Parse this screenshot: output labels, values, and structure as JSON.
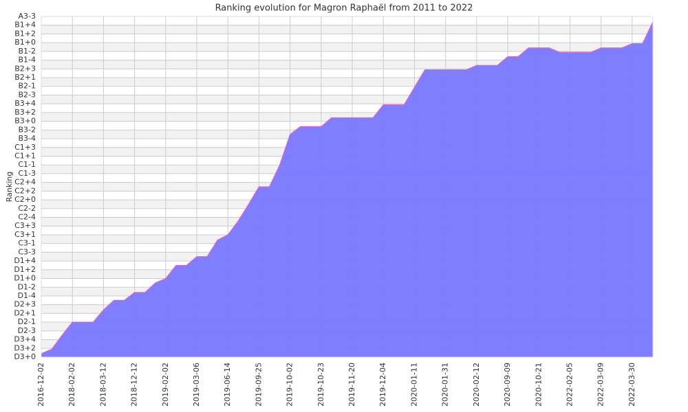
{
  "chart_data": {
    "type": "area",
    "title": "Ranking evolution for Magron Raphaël from 2011 to 2022",
    "y_label": "Ranking",
    "categories": [
      "2016-12-02",
      null,
      null,
      "2018-02-02",
      null,
      null,
      "2018-03-12",
      null,
      null,
      "2018-12-12",
      null,
      null,
      "2019-02-02",
      null,
      null,
      "2019-03-06",
      null,
      null,
      "2019-06-14",
      null,
      null,
      "2019-09-25",
      null,
      null,
      "2019-10-02",
      null,
      null,
      "2019-10-23",
      null,
      null,
      "2019-11-20",
      null,
      null,
      "2019-12-04",
      null,
      null,
      "2020-01-11",
      null,
      null,
      "2020-01-31",
      null,
      null,
      "2020-02-12",
      null,
      null,
      "2020-09-09",
      null,
      null,
      "2020-10-21",
      null,
      null,
      "2022-02-05",
      null,
      null,
      "2022-03-09",
      null,
      null,
      "2022-03-30",
      null,
      null
    ],
    "values": [
      0.4,
      0.9,
      2.5,
      4,
      4,
      4,
      5.4,
      6.5,
      6.5,
      7.4,
      7.4,
      8.5,
      9,
      10.5,
      10.5,
      11.5,
      11.5,
      13.4,
      14,
      15.6,
      17.5,
      19.5,
      19.5,
      22,
      25.5,
      26.4,
      26.4,
      26.4,
      27.4,
      27.4,
      27.4,
      27.4,
      27.4,
      28.9,
      28.9,
      28.9,
      30.9,
      32.9,
      32.9,
      32.9,
      32.9,
      32.9,
      33.4,
      33.4,
      33.4,
      34.4,
      34.4,
      35.4,
      35.4,
      35.4,
      34.9,
      34.9,
      34.9,
      34.9,
      35.4,
      35.4,
      35.4,
      35.9,
      35.9,
      38.4
    ],
    "color": "#7777ff",
    "line_color": "#dd66dd",
    "ylim": [
      0,
      39
    ],
    "yticks": [
      {
        "value": 0,
        "label": "D3+0"
      },
      {
        "value": 1,
        "label": "D3+2"
      },
      {
        "value": 2,
        "label": "D3+4"
      },
      {
        "value": 3,
        "label": "D2-3"
      },
      {
        "value": 4,
        "label": "D2-1"
      },
      {
        "value": 5,
        "label": "D2+1"
      },
      {
        "value": 6,
        "label": "D2+3"
      },
      {
        "value": 7,
        "label": "D1-4"
      },
      {
        "value": 8,
        "label": "D1-2"
      },
      {
        "value": 9,
        "label": "D1+0"
      },
      {
        "value": 10,
        "label": "D1+2"
      },
      {
        "value": 11,
        "label": "D1+4"
      },
      {
        "value": 12,
        "label": "C3-3"
      },
      {
        "value": 13,
        "label": "C3-1"
      },
      {
        "value": 14,
        "label": "C3+1"
      },
      {
        "value": 15,
        "label": "C3+3"
      },
      {
        "value": 16,
        "label": "C2-4"
      },
      {
        "value": 17,
        "label": "C2-2"
      },
      {
        "value": 18,
        "label": "C2+0"
      },
      {
        "value": 19,
        "label": "C2+2"
      },
      {
        "value": 20,
        "label": "C2+4"
      },
      {
        "value": 21,
        "label": "C1-3"
      },
      {
        "value": 22,
        "label": "C1-1"
      },
      {
        "value": 23,
        "label": "C1+1"
      },
      {
        "value": 24,
        "label": "C1+3"
      },
      {
        "value": 25,
        "label": "B3-4"
      },
      {
        "value": 26,
        "label": "B3-2"
      },
      {
        "value": 27,
        "label": "B3+0"
      },
      {
        "value": 28,
        "label": "B3+2"
      },
      {
        "value": 29,
        "label": "B3+4"
      },
      {
        "value": 30,
        "label": "B2-3"
      },
      {
        "value": 31,
        "label": "B2-1"
      },
      {
        "value": 32,
        "label": "B2+1"
      },
      {
        "value": 33,
        "label": "B2+3"
      },
      {
        "value": 34,
        "label": "B1-4"
      },
      {
        "value": 35,
        "label": "B1-2"
      },
      {
        "value": 36,
        "label": "B1+0"
      },
      {
        "value": 37,
        "label": "B1+2"
      },
      {
        "value": 38,
        "label": "B1+4"
      },
      {
        "value": 39,
        "label": "A3-3"
      }
    ],
    "grid": true
  }
}
